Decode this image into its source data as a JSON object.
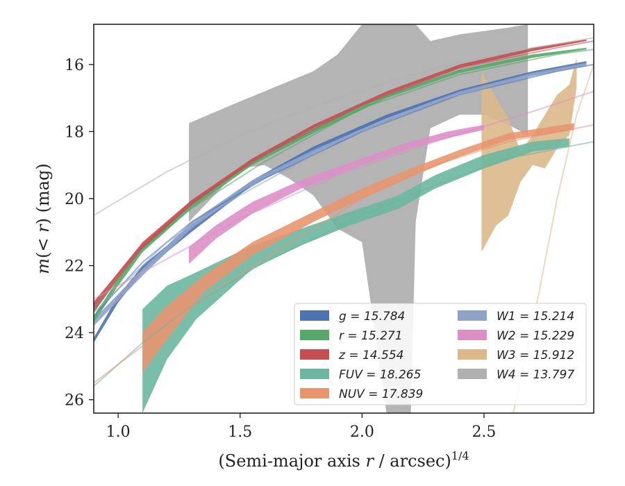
{
  "chart_data": {
    "type": "area",
    "xlabel": "(Semi-major axis r / arcsec)",
    "xlabel_prefix": "(Semi-major axis ",
    "xlabel_var": "r",
    "xlabel_suffix": " / arcsec)",
    "xlabel_exp": "1/4",
    "ylabel": "m(< r) (mag)",
    "ylabel_m": "m",
    "ylabel_open": "(",
    "ylabel_lt": "< ",
    "ylabel_r": "r",
    "ylabel_close": ") (mag)",
    "xlim": [
      0.9,
      2.95
    ],
    "ylim": [
      26.4,
      14.8
    ],
    "y_inverted": true,
    "x_ticks": [
      1.0,
      1.5,
      2.0,
      2.5
    ],
    "x_tick_labels": [
      "1.0",
      "1.5",
      "2.0",
      "2.5"
    ],
    "y_ticks": [
      16,
      18,
      20,
      22,
      24,
      26
    ],
    "y_tick_labels": [
      "16",
      "18",
      "20",
      "22",
      "24",
      "26"
    ],
    "grid": false,
    "legend_position": "bottom-right",
    "series": [
      {
        "name": "g = 15.784",
        "var": "g",
        "value": "15.784",
        "color": "#4c72b0",
        "band": [
          [
            0.9,
            24.3,
            24.15
          ],
          [
            1.0,
            23.1,
            22.9
          ],
          [
            1.1,
            22.2,
            22.0
          ],
          [
            1.3,
            21.0,
            20.8
          ],
          [
            1.55,
            19.6,
            19.45
          ],
          [
            1.8,
            18.6,
            18.45
          ],
          [
            2.1,
            17.6,
            17.5
          ],
          [
            2.4,
            16.85,
            16.75
          ],
          [
            2.7,
            16.3,
            16.2
          ],
          [
            2.92,
            16.0,
            15.9
          ]
        ],
        "curve": [
          [
            0.9,
            23.5
          ],
          [
            1.1,
            21.9
          ],
          [
            1.3,
            20.7
          ],
          [
            1.6,
            19.4
          ],
          [
            2.0,
            18.0
          ],
          [
            2.4,
            16.9
          ],
          [
            2.8,
            16.2
          ],
          [
            2.95,
            16.0
          ]
        ]
      },
      {
        "name": "r = 15.271",
        "var": "r",
        "value": "15.271",
        "color": "#55a868",
        "band": [
          [
            0.9,
            23.7,
            23.5
          ],
          [
            1.0,
            22.6,
            22.4
          ],
          [
            1.1,
            21.6,
            21.4
          ],
          [
            1.3,
            20.3,
            20.15
          ],
          [
            1.55,
            19.0,
            18.85
          ],
          [
            1.8,
            18.05,
            17.9
          ],
          [
            2.1,
            17.0,
            16.9
          ],
          [
            2.4,
            16.25,
            16.15
          ],
          [
            2.7,
            15.8,
            15.7
          ],
          [
            2.92,
            15.55,
            15.5
          ]
        ],
        "curve": [
          [
            0.9,
            23.3
          ],
          [
            1.1,
            21.5
          ],
          [
            1.3,
            20.3
          ],
          [
            1.6,
            18.9
          ],
          [
            2.0,
            17.3
          ],
          [
            2.4,
            16.3
          ],
          [
            2.8,
            15.7
          ],
          [
            2.95,
            15.55
          ]
        ]
      },
      {
        "name": "z = 14.554",
        "var": "z",
        "value": "14.554",
        "color": "#c44e52",
        "band": [
          [
            0.9,
            23.4,
            23.1
          ],
          [
            1.0,
            22.4,
            22.2
          ],
          [
            1.1,
            21.5,
            21.3
          ],
          [
            1.3,
            20.2,
            20.05
          ],
          [
            1.55,
            18.9,
            18.8
          ],
          [
            1.8,
            17.9,
            17.8
          ],
          [
            2.1,
            16.9,
            16.8
          ],
          [
            2.4,
            16.1,
            16.0
          ],
          [
            2.7,
            15.6,
            15.5
          ],
          [
            2.92,
            15.3,
            15.25
          ]
        ],
        "curve": [
          [
            0.9,
            23.1
          ],
          [
            1.1,
            21.4
          ],
          [
            1.3,
            20.1
          ],
          [
            1.6,
            18.7
          ],
          [
            2.0,
            17.2
          ],
          [
            2.4,
            16.1
          ],
          [
            2.8,
            15.5
          ],
          [
            2.95,
            15.3
          ]
        ]
      },
      {
        "name": "FUV = 18.265",
        "var": "FUV",
        "value": "18.265",
        "color": "#6cb7a0",
        "band": [
          [
            1.1,
            26.4,
            23.3
          ],
          [
            1.2,
            24.8,
            22.6
          ],
          [
            1.32,
            23.6,
            22.2
          ],
          [
            1.55,
            22.1,
            21.4
          ],
          [
            1.75,
            21.4,
            20.9
          ],
          [
            1.95,
            20.8,
            20.4
          ],
          [
            2.15,
            20.3,
            19.9
          ],
          [
            2.3,
            19.7,
            19.3
          ],
          [
            2.5,
            19.1,
            18.7
          ],
          [
            2.7,
            18.6,
            18.3
          ],
          [
            2.85,
            18.45,
            18.2
          ]
        ],
        "curve": [
          [
            0.9,
            25.6
          ],
          [
            1.1,
            24.3
          ],
          [
            1.3,
            23.2
          ],
          [
            1.6,
            21.9
          ],
          [
            2.0,
            20.5
          ],
          [
            2.3,
            19.6
          ],
          [
            2.6,
            18.8
          ],
          [
            2.95,
            18.3
          ]
        ]
      },
      {
        "name": "NUV = 17.839",
        "var": "NUV",
        "value": "17.839",
        "color": "#e8956f",
        "band": [
          [
            1.1,
            25.2,
            24.0
          ],
          [
            1.2,
            24.2,
            23.2
          ],
          [
            1.35,
            22.8,
            22.3
          ],
          [
            1.55,
            21.7,
            21.3
          ],
          [
            1.8,
            20.7,
            20.4
          ],
          [
            2.0,
            20.0,
            19.7
          ],
          [
            2.2,
            19.35,
            19.1
          ],
          [
            2.4,
            18.75,
            18.55
          ],
          [
            2.6,
            18.25,
            18.05
          ],
          [
            2.87,
            17.95,
            17.75
          ]
        ],
        "curve": [
          [
            0.9,
            25.5
          ],
          [
            1.1,
            24.4
          ],
          [
            1.3,
            23.2
          ],
          [
            1.6,
            21.8
          ],
          [
            2.0,
            20.0
          ],
          [
            2.3,
            19.0
          ],
          [
            2.6,
            18.3
          ],
          [
            2.95,
            17.8
          ]
        ]
      },
      {
        "name": "W1 = 15.214",
        "var": "W1",
        "value": "15.214",
        "color": "#8fa3c9",
        "band": [
          [
            0.9,
            23.8,
            23.6
          ],
          [
            1.1,
            22.3,
            22.1
          ],
          [
            1.3,
            20.9,
            20.7
          ],
          [
            1.55,
            19.6,
            19.45
          ],
          [
            1.8,
            18.7,
            18.55
          ],
          [
            2.1,
            17.7,
            17.6
          ],
          [
            2.4,
            16.9,
            16.8
          ],
          [
            2.7,
            16.35,
            16.25
          ],
          [
            2.92,
            16.05,
            15.95
          ]
        ],
        "curve": [
          [
            0.9,
            23.4
          ],
          [
            1.2,
            21.3
          ],
          [
            1.5,
            19.9
          ],
          [
            1.9,
            18.3
          ],
          [
            2.3,
            17.1
          ],
          [
            2.7,
            16.3
          ],
          [
            2.95,
            16.0
          ]
        ]
      },
      {
        "name": "W2 = 15.229",
        "var": "W2",
        "value": "15.229",
        "color": "#dd8fc5",
        "band": [
          [
            1.29,
            21.95,
            21.45
          ],
          [
            1.4,
            21.2,
            20.8
          ],
          [
            1.55,
            20.45,
            20.1
          ],
          [
            1.75,
            19.7,
            19.45
          ],
          [
            2.0,
            19.0,
            18.8
          ],
          [
            2.2,
            18.5,
            18.3
          ],
          [
            2.35,
            18.2,
            18.0
          ],
          [
            2.5,
            17.95,
            17.8
          ]
        ],
        "curve": [
          [
            0.9,
            23.0
          ],
          [
            1.2,
            21.8
          ],
          [
            1.5,
            20.6
          ],
          [
            1.9,
            19.3
          ],
          [
            2.3,
            18.3
          ],
          [
            2.7,
            17.4
          ],
          [
            2.95,
            16.8
          ]
        ]
      },
      {
        "name": "W3 = 15.912",
        "var": "W3",
        "value": "15.912",
        "color": "#dbb88a",
        "band": [
          [
            2.49,
            21.6,
            16.2
          ],
          [
            2.55,
            20.8,
            17.0
          ],
          [
            2.6,
            20.5,
            17.6
          ],
          [
            2.65,
            19.5,
            18.6
          ],
          [
            2.7,
            19.0,
            18.1
          ],
          [
            2.75,
            19.1,
            17.5
          ],
          [
            2.8,
            18.5,
            16.9
          ],
          [
            2.85,
            18.1,
            16.6
          ],
          [
            2.88,
            16.7,
            15.8
          ]
        ],
        "curve": [
          [
            2.62,
            26.4
          ],
          [
            2.72,
            23.0
          ],
          [
            2.8,
            20.0
          ],
          [
            2.88,
            17.5
          ],
          [
            2.95,
            16.0
          ]
        ]
      },
      {
        "name": "W4 = 13.797",
        "var": "W4",
        "value": "13.797",
        "color": "#b0b0b0",
        "band": [
          [
            1.29,
            20.7,
            17.75
          ],
          [
            1.5,
            19.1,
            17.1
          ],
          [
            1.6,
            19.0,
            16.8
          ],
          [
            1.7,
            19.4,
            16.5
          ],
          [
            1.8,
            19.9,
            16.2
          ],
          [
            1.9,
            20.9,
            15.7
          ],
          [
            2.0,
            21.3,
            14.8
          ],
          [
            2.1,
            26.4,
            14.8
          ],
          [
            2.2,
            26.4,
            14.8
          ],
          [
            2.22,
            20.7,
            14.8
          ],
          [
            2.28,
            17.9,
            15.3
          ],
          [
            2.4,
            17.5,
            15.1
          ],
          [
            2.5,
            17.5,
            15.0
          ],
          [
            2.6,
            17.8,
            14.9
          ],
          [
            2.68,
            18.1,
            14.8
          ]
        ],
        "curve": [
          [
            0.9,
            20.5
          ],
          [
            1.2,
            19.2
          ],
          [
            1.5,
            18.1
          ],
          [
            1.9,
            17.0
          ],
          [
            2.3,
            16.1
          ],
          [
            2.7,
            15.5
          ],
          [
            2.95,
            15.2
          ]
        ]
      }
    ]
  }
}
